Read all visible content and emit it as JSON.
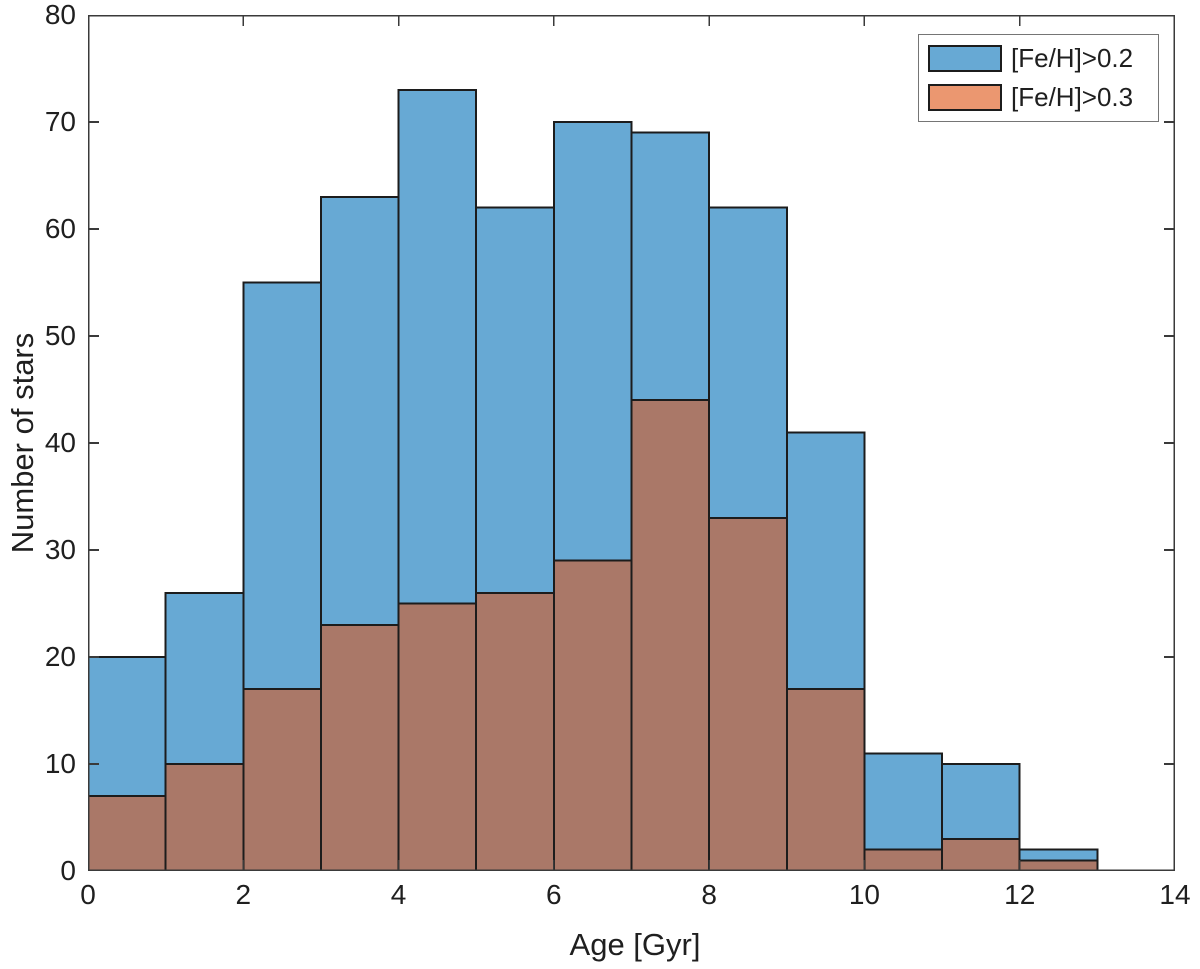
{
  "chart_data": {
    "type": "bar",
    "subtype": "overlaid-histogram",
    "xlabel": "Age [Gyr]",
    "ylabel": "Number of stars",
    "xlim": [
      0,
      14
    ],
    "ylim": [
      0,
      80
    ],
    "xticks": [
      0,
      2,
      4,
      6,
      8,
      10,
      12,
      14
    ],
    "yticks": [
      0,
      10,
      20,
      30,
      40,
      50,
      60,
      70,
      80
    ],
    "bin_start": 0,
    "bin_width": 1,
    "grid": false,
    "legend_position": "top-right",
    "series": [
      {
        "name": "[Fe/H]>0.2",
        "values": [
          20,
          26,
          55,
          63,
          73,
          62,
          70,
          69,
          62,
          41,
          11,
          10,
          2
        ],
        "fill": "#67A9D4"
      },
      {
        "name": "[Fe/H]>0.3",
        "values": [
          7,
          10,
          17,
          23,
          25,
          26,
          29,
          44,
          33,
          17,
          2,
          3,
          1
        ],
        "fill": "#EB9770",
        "overlap_fill": "#AA7868"
      }
    ],
    "colors": {
      "bar_edge": "#1C1C1C",
      "axis": "#3A3A3A",
      "text": "#1F1F1F",
      "background": "#FFFFFF"
    }
  }
}
